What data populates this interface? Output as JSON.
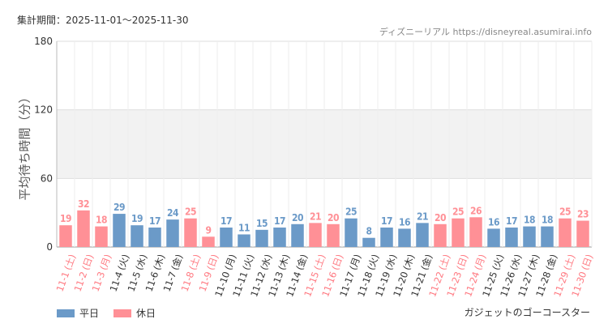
{
  "header": {
    "period": "集計期間：2025-11-01〜2025-11-30",
    "source": "ディズニーリアル https://disneyreal.asumirai.info"
  },
  "footer": {
    "ride_name": "ガジェットのゴーコースター"
  },
  "colors": {
    "weekday": "#6b9ac8",
    "holiday": "#ff9096",
    "band": "#f2f2f2",
    "axis": "#bbbbbb"
  },
  "chart_data": {
    "type": "bar",
    "ylabel": "平均待ち時間（分）",
    "ylim": [
      0,
      180
    ],
    "yticks": [
      0,
      60,
      120,
      180
    ],
    "shaded_band": [
      60,
      120
    ],
    "legend": [
      {
        "name": "平日",
        "key": "weekday"
      },
      {
        "name": "休日",
        "key": "holiday"
      }
    ],
    "categories": [
      "11-1 (土)",
      "11-2 (日)",
      "11-3 (月)",
      "11-4 (火)",
      "11-5 (水)",
      "11-6 (木)",
      "11-7 (金)",
      "11-8 (土)",
      "11-9 (日)",
      "11-10 (月)",
      "11-11 (火)",
      "11-12 (水)",
      "11-13 (木)",
      "11-14 (金)",
      "11-15 (土)",
      "11-16 (日)",
      "11-17 (月)",
      "11-18 (火)",
      "11-19 (水)",
      "11-20 (木)",
      "11-21 (金)",
      "11-22 (土)",
      "11-23 (日)",
      "11-24 (月)",
      "11-25 (火)",
      "11-26 (水)",
      "11-27 (木)",
      "11-28 (金)",
      "11-29 (土)",
      "11-30 (日)"
    ],
    "values": [
      19,
      32,
      18,
      29,
      19,
      17,
      24,
      25,
      9,
      17,
      11,
      15,
      17,
      20,
      21,
      20,
      25,
      8,
      17,
      16,
      21,
      20,
      25,
      26,
      16,
      17,
      18,
      18,
      25,
      23
    ],
    "day_type": [
      "holiday",
      "holiday",
      "holiday",
      "weekday",
      "weekday",
      "weekday",
      "weekday",
      "holiday",
      "holiday",
      "weekday",
      "weekday",
      "weekday",
      "weekday",
      "weekday",
      "holiday",
      "holiday",
      "weekday",
      "weekday",
      "weekday",
      "weekday",
      "weekday",
      "holiday",
      "holiday",
      "holiday",
      "weekday",
      "weekday",
      "weekday",
      "weekday",
      "holiday",
      "holiday"
    ]
  }
}
